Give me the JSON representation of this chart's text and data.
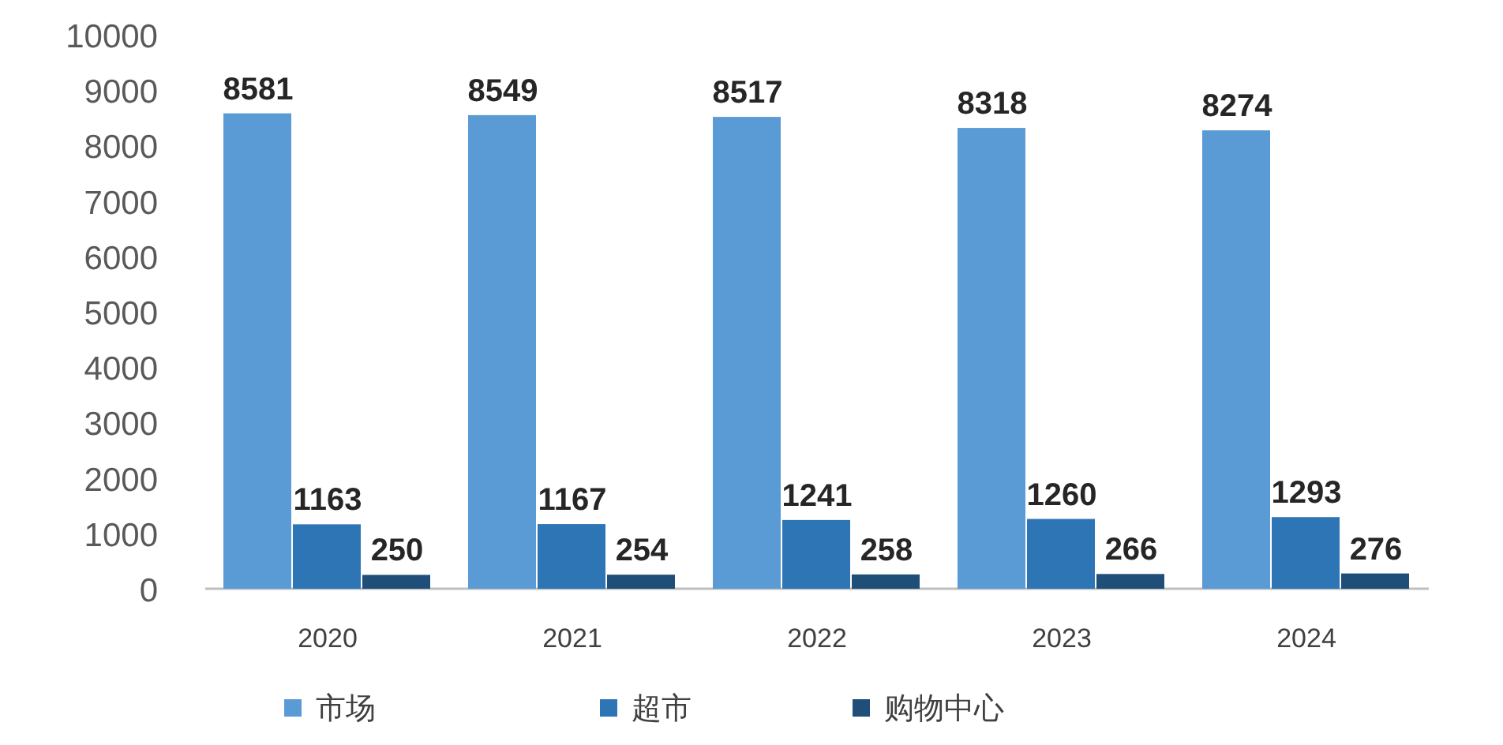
{
  "chart_data": {
    "type": "bar",
    "categories": [
      "2020",
      "2021",
      "2022",
      "2023",
      "2024"
    ],
    "series": [
      {
        "name": "市场",
        "color": "#5b9bd5",
        "values": [
          8581,
          8549,
          8517,
          8318,
          8274
        ]
      },
      {
        "name": "超市",
        "color": "#2e75b6",
        "values": [
          1163,
          1167,
          1241,
          1260,
          1293
        ]
      },
      {
        "name": "购物中心",
        "color": "#1f4e79",
        "values": [
          250,
          254,
          258,
          266,
          276
        ]
      }
    ],
    "ylim": [
      0,
      10000
    ],
    "yticks": [
      0,
      1000,
      2000,
      3000,
      4000,
      5000,
      6000,
      7000,
      8000,
      9000,
      10000
    ],
    "data_labels": true,
    "legend": "bottom",
    "grid": false
  }
}
